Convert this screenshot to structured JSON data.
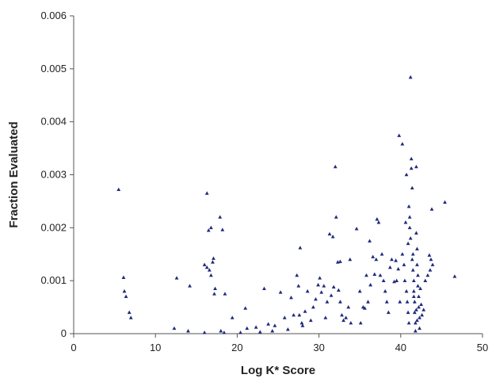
{
  "chart_data": {
    "type": "scatter",
    "title": "",
    "xlabel": "Log K* Score",
    "ylabel": "Fraction Evaluated",
    "xlim": [
      0,
      50
    ],
    "ylim": [
      0,
      0.006
    ],
    "x_ticks": [
      "0",
      "10",
      "20",
      "30",
      "40",
      "50"
    ],
    "y_ticks": [
      "0",
      "0.001",
      "0.002",
      "0.003",
      "0.004",
      "0.005",
      "0.006"
    ],
    "grid": false,
    "legend": "none",
    "marker_color": "#1f2a7a",
    "series": [
      {
        "points": [
          [
            5.5,
            0.00272
          ],
          [
            6.1,
            0.00106
          ],
          [
            6.2,
            0.0008
          ],
          [
            6.4,
            0.0007
          ],
          [
            6.8,
            0.0004
          ],
          [
            7.0,
            0.0003
          ],
          [
            12.6,
            0.00105
          ],
          [
            12.3,
            0.0001
          ],
          [
            14.2,
            0.0009
          ],
          [
            14.0,
            5e-05
          ],
          [
            16.3,
            0.00265
          ],
          [
            16.5,
            0.00195
          ],
          [
            16.8,
            0.002
          ],
          [
            16.0,
            0.0013
          ],
          [
            16.3,
            0.00125
          ],
          [
            16.6,
            0.0012
          ],
          [
            17.0,
            0.00135
          ],
          [
            17.1,
            0.00142
          ],
          [
            16.8,
            0.0011
          ],
          [
            17.3,
            0.00085
          ],
          [
            17.2,
            0.00075
          ],
          [
            17.9,
            0.0022
          ],
          [
            18.2,
            0.00196
          ],
          [
            18.5,
            0.00075
          ],
          [
            18.0,
            5e-05
          ],
          [
            18.4,
            2e-05
          ],
          [
            16.0,
            2e-05
          ],
          [
            19.4,
            0.0003
          ],
          [
            20.4,
            2e-05
          ],
          [
            21.0,
            0.00048
          ],
          [
            21.2,
            0.0001
          ],
          [
            22.3,
            0.00012
          ],
          [
            22.8,
            3e-05
          ],
          [
            23.3,
            0.00085
          ],
          [
            23.8,
            0.00018
          ],
          [
            24.3,
            5e-05
          ],
          [
            24.6,
            0.00015
          ],
          [
            25.3,
            0.00078
          ],
          [
            25.8,
            0.0003
          ],
          [
            26.2,
            8e-05
          ],
          [
            26.6,
            0.00068
          ],
          [
            26.9,
            0.00035
          ],
          [
            27.3,
            0.0011
          ],
          [
            27.5,
            0.0009
          ],
          [
            27.7,
            0.00162
          ],
          [
            27.6,
            0.00035
          ],
          [
            27.9,
            0.0002
          ],
          [
            28.0,
            0.00015
          ],
          [
            28.3,
            0.00042
          ],
          [
            28.6,
            0.0008
          ],
          [
            29.0,
            0.00025
          ],
          [
            29.3,
            0.0005
          ],
          [
            29.6,
            0.00065
          ],
          [
            29.9,
            0.00092
          ],
          [
            30.1,
            0.00105
          ],
          [
            30.3,
            0.00078
          ],
          [
            30.6,
            0.0009
          ],
          [
            30.8,
            0.0003
          ],
          [
            31.0,
            0.0006
          ],
          [
            31.3,
            0.00188
          ],
          [
            31.5,
            0.00072
          ],
          [
            31.7,
            0.00183
          ],
          [
            31.8,
            0.00088
          ],
          [
            32.0,
            0.00315
          ],
          [
            32.1,
            0.0022
          ],
          [
            32.3,
            0.00135
          ],
          [
            32.6,
            0.00136
          ],
          [
            32.4,
            0.00082
          ],
          [
            32.6,
            0.0006
          ],
          [
            32.8,
            0.00035
          ],
          [
            33.0,
            0.00025
          ],
          [
            33.3,
            0.0003
          ],
          [
            33.6,
            0.0005
          ],
          [
            33.8,
            0.0014
          ],
          [
            33.9,
            0.0002
          ],
          [
            34.6,
            0.00198
          ],
          [
            35.0,
            0.0008
          ],
          [
            35.1,
            0.0002
          ],
          [
            35.4,
            0.0005
          ],
          [
            35.6,
            0.00048
          ],
          [
            35.8,
            0.0011
          ],
          [
            36.0,
            0.0006
          ],
          [
            36.2,
            0.00175
          ],
          [
            36.3,
            0.00092
          ],
          [
            36.6,
            0.00145
          ],
          [
            36.8,
            0.00112
          ],
          [
            37.0,
            0.0014
          ],
          [
            37.1,
            0.00216
          ],
          [
            37.3,
            0.0021
          ],
          [
            37.5,
            0.0011
          ],
          [
            37.7,
            0.0015
          ],
          [
            37.9,
            0.001
          ],
          [
            38.1,
            0.0008
          ],
          [
            38.3,
            0.0006
          ],
          [
            38.5,
            0.0004
          ],
          [
            38.7,
            0.00125
          ],
          [
            38.9,
            0.0014
          ],
          [
            39.2,
            0.00098
          ],
          [
            39.4,
            0.00138
          ],
          [
            39.5,
            0.001
          ],
          [
            39.7,
            0.00122
          ],
          [
            39.9,
            0.0006
          ],
          [
            39.8,
            0.00374
          ],
          [
            40.2,
            0.00358
          ],
          [
            40.2,
            0.0015
          ],
          [
            40.4,
            0.0013
          ],
          [
            40.5,
            0.001
          ],
          [
            40.7,
            0.003
          ],
          [
            40.7,
            0.0008
          ],
          [
            40.8,
            0.0006
          ],
          [
            40.9,
            0.0004
          ],
          [
            41.0,
            0.0002
          ],
          [
            41.0,
            0.0024
          ],
          [
            41.1,
            0.0022
          ],
          [
            41.1,
            0.002
          ],
          [
            41.2,
            0.0018
          ],
          [
            41.2,
            0.00484
          ],
          [
            41.3,
            0.0033
          ],
          [
            41.3,
            0.00312
          ],
          [
            41.4,
            0.00275
          ],
          [
            41.5,
            0.0015
          ],
          [
            41.5,
            0.0012
          ],
          [
            41.6,
            0.001
          ],
          [
            41.6,
            0.0008
          ],
          [
            41.7,
            0.0006
          ],
          [
            41.7,
            0.0004
          ],
          [
            41.8,
            0.0002
          ],
          [
            41.8,
            5e-05
          ],
          [
            41.9,
            0.00315
          ],
          [
            41.9,
            0.0019
          ],
          [
            42.0,
            0.0016
          ],
          [
            42.0,
            0.0013
          ],
          [
            42.1,
            0.0011
          ],
          [
            42.1,
            0.0009
          ],
          [
            42.2,
            0.0007
          ],
          [
            42.2,
            0.0005
          ],
          [
            42.3,
            0.0003
          ],
          [
            42.3,
            0.0001
          ],
          [
            40.6,
            0.0021
          ],
          [
            40.9,
            0.0017
          ],
          [
            41.4,
            0.0014
          ],
          [
            41.6,
            0.0007
          ],
          [
            41.9,
            0.00045
          ],
          [
            42.0,
            0.00025
          ],
          [
            42.4,
            0.00085
          ],
          [
            42.5,
            0.00055
          ],
          [
            42.6,
            0.00035
          ],
          [
            42.8,
            0.00045
          ],
          [
            43.0,
            0.001
          ],
          [
            43.3,
            0.0011
          ],
          [
            43.5,
            0.00148
          ],
          [
            43.6,
            0.0012
          ],
          [
            43.7,
            0.0014
          ],
          [
            43.8,
            0.00235
          ],
          [
            43.9,
            0.0013
          ],
          [
            45.4,
            0.00248
          ],
          [
            46.6,
            0.00108
          ]
        ]
      }
    ]
  }
}
